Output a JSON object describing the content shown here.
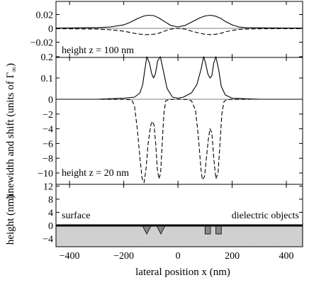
{
  "chart_data": [
    {
      "type": "line",
      "panel": "top",
      "annotation": "height  z = 100 nm",
      "xlim": [
        -450,
        460
      ],
      "ylim": [
        -0.03,
        0.03
      ],
      "yticks": [
        {
          "value": 0.02,
          "label": "0.02"
        },
        {
          "value": 0,
          "label": "0"
        },
        {
          "value": -0.02,
          "label": "−0.02"
        }
      ],
      "series": [
        {
          "style": "solid",
          "x": [
            -450,
            -400,
            -350,
            -300,
            -250,
            -200,
            -175,
            -150,
            -125,
            -110,
            -90,
            -70,
            -50,
            -25,
            0,
            25,
            50,
            80,
            100,
            120,
            140,
            160,
            175,
            200,
            225,
            250,
            300,
            350,
            400,
            460
          ],
          "y": [
            0.0005,
            0.0006,
            0.0008,
            0.001,
            0.002,
            0.005,
            0.009,
            0.014,
            0.018,
            0.019,
            0.0185,
            0.015,
            0.01,
            0.004,
            0.002,
            0.004,
            0.009,
            0.015,
            0.018,
            0.019,
            0.0175,
            0.014,
            0.01,
            0.005,
            0.002,
            0.001,
            0.0008,
            0.0006,
            0.0005,
            0.0005
          ]
        },
        {
          "style": "dashed",
          "x": [
            -450,
            -400,
            -350,
            -300,
            -250,
            -200,
            -175,
            -150,
            -125,
            -110,
            -90,
            -70,
            -50,
            -25,
            0,
            25,
            50,
            80,
            100,
            120,
            140,
            160,
            175,
            200,
            225,
            250,
            300,
            350,
            400,
            460
          ],
          "y": [
            -0.0005,
            -0.0006,
            -0.0008,
            -0.001,
            -0.002,
            -0.004,
            -0.006,
            -0.008,
            -0.009,
            -0.009,
            -0.0085,
            -0.007,
            -0.004,
            -0.001,
            0.0,
            -0.001,
            -0.004,
            -0.007,
            -0.0085,
            -0.009,
            -0.0085,
            -0.007,
            -0.005,
            -0.003,
            -0.0015,
            -0.001,
            -0.0006,
            -0.0005,
            -0.0004,
            -0.0004
          ]
        }
      ]
    },
    {
      "type": "line",
      "panel": "middle",
      "annotation": "height  z = 20 nm",
      "xlim": [
        -450,
        460
      ],
      "yticks": [
        {
          "value": 0.2,
          "label": "0.2"
        },
        {
          "value": 0.1,
          "label": "0.1"
        },
        {
          "value": 0,
          "label": "0"
        },
        {
          "value": -2,
          "label": "−2"
        },
        {
          "value": -4,
          "label": "−4"
        },
        {
          "value": -6,
          "label": "−6"
        },
        {
          "value": -8,
          "label": "−8"
        },
        {
          "value": -10,
          "label": "−10"
        }
      ],
      "series": [
        {
          "style": "solid",
          "x": [
            -450,
            -300,
            -200,
            -160,
            -140,
            -130,
            -122,
            -115,
            -105,
            -97,
            -90,
            -83,
            -75,
            -65,
            -55,
            -40,
            -20,
            0,
            20,
            50,
            70,
            85,
            95,
            102,
            110,
            118,
            125,
            132,
            140,
            150,
            160,
            175,
            200,
            300,
            460
          ],
          "y": [
            0.0,
            0.0,
            0.005,
            0.01,
            0.03,
            0.07,
            0.14,
            0.2,
            0.17,
            0.12,
            0.1,
            0.12,
            0.18,
            0.2,
            0.14,
            0.05,
            0.01,
            0.005,
            0.01,
            0.03,
            0.07,
            0.14,
            0.2,
            0.17,
            0.12,
            0.1,
            0.11,
            0.17,
            0.2,
            0.14,
            0.06,
            0.02,
            0.005,
            0.0,
            0.0
          ]
        },
        {
          "style": "dashed",
          "x": [
            -450,
            -300,
            -220,
            -190,
            -170,
            -160,
            -150,
            -140,
            -132,
            -125,
            -118,
            -110,
            -100,
            -95,
            -88,
            -82,
            -76,
            -70,
            -64,
            -58,
            -52,
            -45,
            -35,
            -20,
            0,
            20,
            35,
            50,
            65,
            75,
            85,
            90,
            98,
            105,
            112,
            118,
            125,
            132,
            140,
            148,
            155,
            162,
            170,
            180,
            200,
            225,
            260,
            300,
            460
          ],
          "y": [
            0.0,
            0.0,
            -0.01,
            -0.03,
            -0.06,
            -1.0,
            -4.0,
            -8.0,
            -10.8,
            -11.3,
            -9.5,
            -6.0,
            -3.5,
            -3.0,
            -3.5,
            -6.0,
            -9.5,
            -10.8,
            -10.0,
            -6.0,
            -2.0,
            -0.2,
            -0.05,
            -0.02,
            0.0,
            -0.02,
            -0.05,
            -0.2,
            -1.5,
            -5.0,
            -9.5,
            -10.9,
            -10.5,
            -8.0,
            -5.5,
            -4.0,
            -4.5,
            -8.0,
            -10.8,
            -10.0,
            -6.0,
            -2.0,
            -0.3,
            -0.05,
            -0.02,
            -0.01,
            0.0,
            0.0,
            0.0
          ]
        }
      ]
    },
    {
      "type": "area",
      "panel": "bottom",
      "xlim": [
        -450,
        460
      ],
      "ylim": [
        -8,
        16
      ],
      "yticks": [
        {
          "value": 12,
          "label": "12"
        },
        {
          "value": 8,
          "label": "8"
        },
        {
          "value": 4,
          "label": "4"
        },
        {
          "value": 0,
          "label": "0"
        },
        {
          "value": -4,
          "label": "−4"
        }
      ],
      "labels": {
        "left": "surface",
        "right": "dielectric objects"
      },
      "objects": [
        {
          "shape": "triangle",
          "x_from": -130,
          "x_to": -100
        },
        {
          "shape": "triangle",
          "x_from": -78,
          "x_to": -48
        },
        {
          "shape": "rectangle",
          "x_from": 100,
          "x_to": 120
        },
        {
          "shape": "rectangle",
          "x_from": 140,
          "x_to": 160
        }
      ]
    }
  ],
  "axes": {
    "ylabel_top": "linewidth and shift (units of Γ",
    "ylabel_sub": "∞",
    "ylabel_close": ")",
    "ylabel_bottom": "height (nm)",
    "xlabel": "lateral position  x (nm)",
    "xticks": [
      {
        "value": -400,
        "label": "−400"
      },
      {
        "value": -200,
        "label": "−200"
      },
      {
        "value": 0,
        "label": "0"
      },
      {
        "value": 200,
        "label": "200"
      },
      {
        "value": 400,
        "label": "400"
      }
    ]
  }
}
